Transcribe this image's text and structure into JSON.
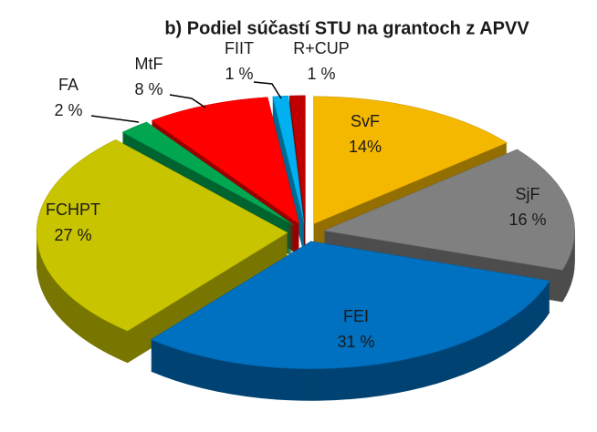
{
  "chart_data": {
    "type": "pie3d",
    "title": "b) Podiel súčastí STU na grantoch z APVV",
    "categories": [
      "SvF",
      "SjF",
      "FEI",
      "FCHPT",
      "FA",
      "MtF",
      "FIIT",
      "R+CUP"
    ],
    "values": [
      14,
      16,
      31,
      27,
      2,
      8,
      1,
      1
    ],
    "value_labels": [
      "14%",
      "16 %",
      "31 %",
      "27 %",
      "2 %",
      "8 %",
      "1 %",
      "1 %"
    ],
    "colors": [
      "#f5b800",
      "#808080",
      "#0070c0",
      "#c8c400",
      "#00a650",
      "#ff0000",
      "#00b0f0",
      "#c00000"
    ]
  }
}
